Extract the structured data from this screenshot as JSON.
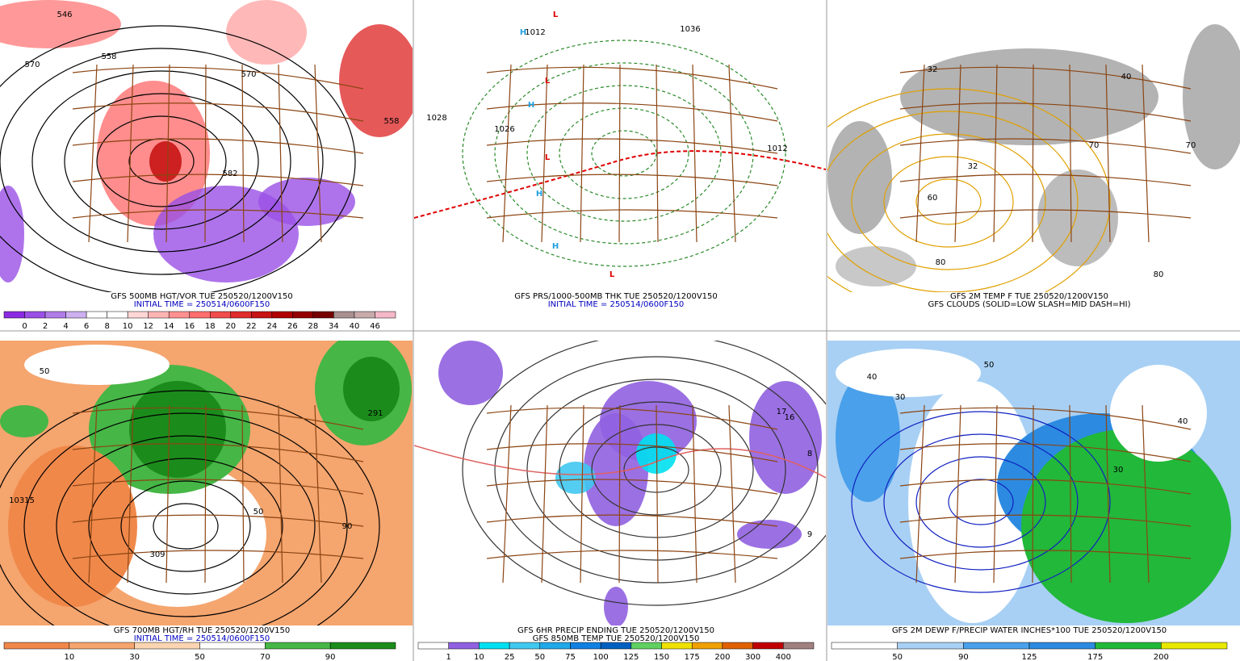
{
  "panels": [
    {
      "caption": [
        {
          "text": "GFS 500MB HGT/VOR TUE 250520/1200V150",
          "color": "#000000"
        },
        {
          "text": "INITIAL TIME = 250514/0600F150",
          "color": "#0000c0"
        }
      ],
      "colorbar": {
        "labels": [
          0,
          2,
          4,
          6,
          8,
          10,
          12,
          14,
          16,
          18,
          20,
          22,
          24,
          26,
          28,
          34,
          40,
          46
        ],
        "colors": [
          "#8a2be2",
          "#9a50e6",
          "#b07ce8",
          "#cdb0f0",
          "#ffffff",
          "#ffffff",
          "#ffd6d6",
          "#ffb4b4",
          "#ff9090",
          "#ff6e6e",
          "#f04c4c",
          "#e02c2c",
          "#c81414",
          "#b00000",
          "#940000",
          "#760000",
          "#a89090",
          "#c8aaaa",
          "#f4b8c8"
        ]
      },
      "labels": [
        "546",
        "558",
        "570",
        "570",
        "558",
        "582"
      ]
    },
    {
      "caption": [
        {
          "text": "GFS PRS/1000-500MB THK TUE 250520/1200V150",
          "color": "#000000"
        },
        {
          "text": "INITIAL TIME = 250514/0600F150",
          "color": "#0000c0"
        }
      ],
      "labels": [
        "L",
        "L",
        "L",
        "L",
        "H",
        "H",
        "H",
        "H",
        "1012",
        "1028",
        "1036",
        "1026",
        "1012"
      ]
    },
    {
      "caption": [
        {
          "text": "GFS 2M TEMP F TUE 250520/1200V150",
          "color": "#000000"
        },
        {
          "text": "GFS CLOUDS (SOLID=LOW SLASH=MID DASH=HI)",
          "color": "#000000"
        }
      ],
      "labels": [
        "32",
        "32",
        "60",
        "70",
        "70",
        "80",
        "80",
        "40"
      ]
    },
    {
      "caption": [
        {
          "text": "GFS 700MB HGT/RH TUE 250520/1200V150",
          "color": "#000000"
        },
        {
          "text": "INITIAL TIME = 250514/0600F150",
          "color": "#0000c0"
        }
      ],
      "colorbar": {
        "labels": [
          10,
          30,
          50,
          70,
          90
        ],
        "colors": [
          "#f0884a",
          "#f5a56e",
          "#fbd4b2",
          "#ffffff",
          "#46b646",
          "#1b8c1b"
        ]
      },
      "labels": [
        "50",
        "10315",
        "309",
        "50",
        "90",
        "291"
      ]
    },
    {
      "caption": [
        {
          "text": "GFS 6HR PRECIP ENDING TUE 250520/1200V150",
          "color": "#000000"
        },
        {
          "text": "GFS 850MB TEMP TUE 250520/1200V150",
          "color": "#000000"
        }
      ],
      "colorbar": {
        "labels": [
          1,
          10,
          25,
          50,
          75,
          100,
          125,
          150,
          175,
          200,
          300,
          400
        ],
        "colors": [
          "#ffffff",
          "#9060e0",
          "#00e0f0",
          "#40c8f0",
          "#20a8e8",
          "#1080e0",
          "#0060c0",
          "#60d060",
          "#f0e000",
          "#f0a000",
          "#e06000",
          "#c00000",
          "#a08080"
        ]
      },
      "labels": [
        "16",
        "17",
        "8",
        "9"
      ]
    },
    {
      "caption": [
        {
          "text": "GFS 2M DEWP F/PRECIP WATER INCHES*100 TUE 250520/1200V150",
          "color": "#000000"
        }
      ],
      "colorbar": {
        "labels": [
          50,
          90,
          125,
          175,
          200
        ],
        "colors": [
          "#ffffff",
          "#a8d0f4",
          "#4aa0ea",
          "#2c8be0",
          "#22b83a",
          "#e8e800"
        ]
      },
      "labels": [
        "40",
        "30",
        "50",
        "30",
        "40"
      ]
    }
  ]
}
